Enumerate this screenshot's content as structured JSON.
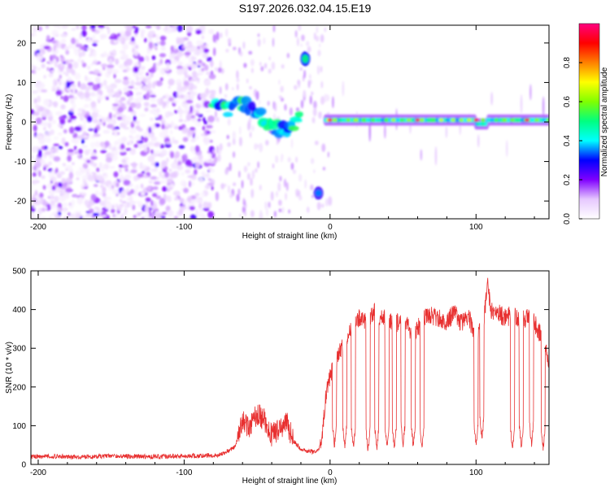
{
  "title": "S197.2026.032.04.15.E19",
  "chart_data": [
    {
      "type": "heatmap",
      "title": "S197.2026.032.04.15.E19",
      "xlabel": "Height of straight line (km)",
      "ylabel": "Frequency (Hz)",
      "xlim": [
        -205,
        150
      ],
      "ylim": [
        -24.5,
        24.5
      ],
      "xticks": [
        -200,
        -100,
        0,
        100
      ],
      "yticks": [
        -20,
        -10,
        0,
        10,
        20
      ],
      "colorbar": {
        "label": "Normalized spectral amplitude",
        "range": [
          0,
          1
        ],
        "ticks": [
          "0.0",
          "0.2",
          "0.4",
          "0.6",
          "0.8"
        ],
        "colors": [
          "#ffffff",
          "#e6c8ff",
          "#8000ff",
          "#0000ff",
          "#00ffff",
          "#00ff80",
          "#80ff00",
          "#ffff00",
          "#ff8000",
          "#ff0000",
          "#ff0080"
        ]
      },
      "regions": [
        {
          "name": "noise speckle",
          "x_range": [
            -205,
            -80
          ],
          "f_range": [
            -24.5,
            24.5
          ],
          "amplitude": 0.15
        },
        {
          "name": "descending trace",
          "points": [
            [
              -80,
              4
            ],
            [
              -70,
              3
            ],
            [
              -60,
              5
            ],
            [
              -50,
              2
            ],
            [
              -40,
              -1
            ],
            [
              -30,
              -2
            ],
            [
              -20,
              1
            ]
          ],
          "amplitude": 0.45
        },
        {
          "name": "upper blob",
          "x": -17,
          "f": 16,
          "amplitude": 0.5
        },
        {
          "name": "lower blob",
          "x": -8,
          "f": -18,
          "amplitude": 0.35
        },
        {
          "name": "carrier line",
          "x_range": [
            -3,
            150
          ],
          "f": 0.5,
          "amplitude": 0.6,
          "peaks_at": [
            0,
            60,
            100,
            135
          ]
        }
      ]
    },
    {
      "type": "line",
      "xlabel": "Height of straight line (km)",
      "ylabel": "SNR (10 * v/v)",
      "xlim": [
        -205,
        150
      ],
      "ylim": [
        0,
        500
      ],
      "xticks": [
        -200,
        -100,
        0,
        100
      ],
      "yticks": [
        0,
        100,
        200,
        300,
        400,
        500
      ],
      "color": "#e83030",
      "series": [
        {
          "name": "SNR",
          "x": [
            -205,
            -190,
            -170,
            -150,
            -130,
            -110,
            -90,
            -75,
            -65,
            -60,
            -55,
            -50,
            -45,
            -40,
            -35,
            -30,
            -25,
            -20,
            -15,
            -10,
            -8,
            -5,
            -3,
            0,
            2,
            5,
            8,
            10,
            15,
            20,
            25,
            30,
            35,
            40,
            45,
            50,
            55,
            60,
            65,
            70,
            75,
            80,
            85,
            90,
            95,
            100,
            105,
            108,
            110,
            115,
            120,
            125,
            130,
            135,
            140,
            145,
            150
          ],
          "values": [
            20,
            21,
            19,
            22,
            20,
            21,
            22,
            25,
            45,
            110,
            95,
            130,
            115,
            75,
            90,
            110,
            60,
            40,
            35,
            30,
            35,
            90,
            170,
            230,
            250,
            280,
            300,
            310,
            350,
            380,
            370,
            395,
            380,
            375,
            360,
            380,
            340,
            350,
            380,
            385,
            375,
            370,
            390,
            365,
            380,
            330,
            360,
            470,
            400,
            390,
            380,
            385,
            370,
            380,
            365,
            330,
            270
          ],
          "dropouts": [
            {
              "x": 3,
              "min": 40
            },
            {
              "x": 10,
              "min": 35
            },
            {
              "x": 16,
              "min": 30
            },
            {
              "x": 26,
              "min": 25
            },
            {
              "x": 32,
              "min": 30
            },
            {
              "x": 39,
              "min": 35
            },
            {
              "x": 44,
              "min": 30
            },
            {
              "x": 50,
              "min": 40
            },
            {
              "x": 57,
              "min": 35
            },
            {
              "x": 63,
              "min": 30
            },
            {
              "x": 100,
              "min": 40
            },
            {
              "x": 104,
              "min": 55
            },
            {
              "x": 125,
              "min": 30
            },
            {
              "x": 131,
              "min": 35
            },
            {
              "x": 138,
              "min": 40
            },
            {
              "x": 146,
              "min": 30
            }
          ]
        }
      ]
    }
  ]
}
